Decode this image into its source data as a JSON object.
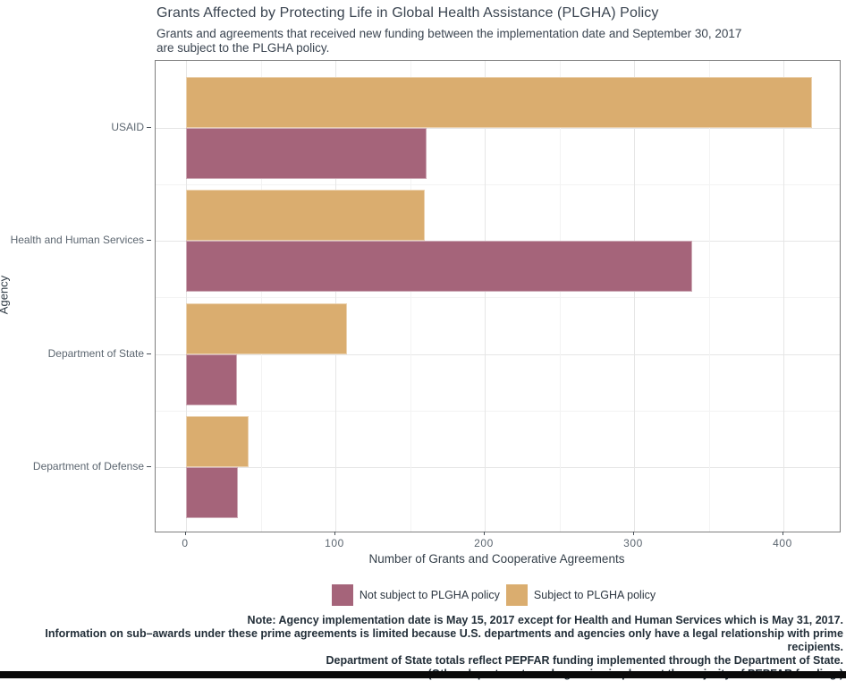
{
  "title": "Grants Affected by Protecting Life in Global Health Assistance (PLGHA) Policy",
  "subtitle": "Grants and agreements that received new funding between the implementation date and September 30, 2017\nare subject to the PLGHA policy.",
  "chart_data": {
    "type": "bar",
    "orientation": "horizontal",
    "title": "Grants Affected by Protecting Life in Global Health Assistance (PLGHA) Policy",
    "categories": [
      "USAID",
      "Health and Human Services",
      "Department of State",
      "Department of Defense"
    ],
    "series": [
      {
        "name": "Not subject to PLGHA policy",
        "color": "#A5647A",
        "values": [
          161,
          339,
          34,
          35
        ]
      },
      {
        "name": "Subject to PLGHA policy",
        "color": "#DAAD6F",
        "values": [
          419,
          160,
          108,
          42
        ]
      }
    ],
    "xlabel": "Number of Grants and Cooperative Agreements",
    "ylabel": "Agency",
    "xlim": [
      0,
      440
    ],
    "xticks": [
      0,
      100,
      200,
      300,
      400
    ],
    "grid": true,
    "legend_position": "bottom"
  },
  "note_lines": [
    "Note: Agency implementation date is May 15, 2017 except for Health and Human Services which is May 31, 2017.",
    "Information on sub–awards under these prime agreements is limited because U.S. departments and agencies only have a legal relationship with prime recipients.",
    "Department of State totals reflect PEPFAR funding implemented through the Department of State.",
    "(Other departments and agencies implement the majority of PEPFAR funding.)"
  ],
  "colors": {
    "not_subject": "#A5647A",
    "subject": "#DAAD6F",
    "panel_border": "#7e7e7e",
    "grid_major": "#e6e6e6",
    "grid_minor": "#f3f3f3",
    "axis_text": "#5c6670",
    "dark_text": "#3a4450",
    "footer_bar": "#0a0a0a"
  }
}
